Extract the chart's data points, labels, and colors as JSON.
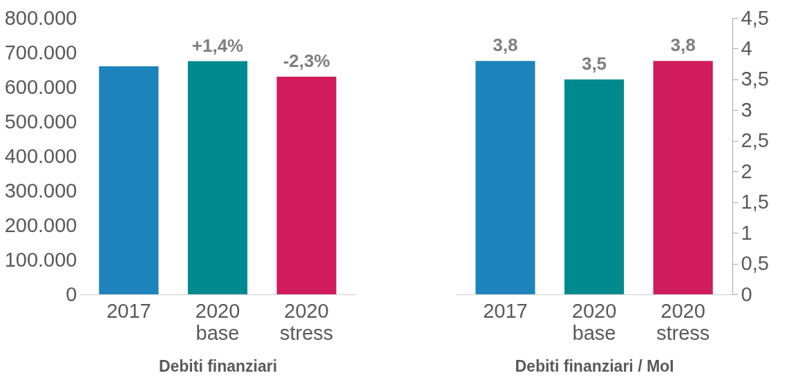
{
  "chart_data": [
    {
      "type": "bar",
      "xlabel": "Debiti finanziari",
      "categories": [
        "2017",
        "2020 base",
        "2020 stress"
      ],
      "values": [
        660000,
        675000,
        630000
      ],
      "colors": [
        "#1f83bb",
        "#008a8f",
        "#d01c5a"
      ],
      "annotations": [
        {
          "text": "+1,4%",
          "x": "2020 base",
          "y": 675000
        },
        {
          "text": "-2,3%",
          "x": "2020 stress",
          "y": 630000
        }
      ],
      "ylim": [
        0,
        800000
      ],
      "yticks": [
        0,
        {
          "value": 100000,
          "label": "100.000"
        },
        {
          "value": 200000,
          "label": "200.000"
        },
        {
          "value": 300000,
          "label": "300.000"
        },
        {
          "value": 400000,
          "label": "400.000"
        },
        {
          "value": 500000,
          "label": "500.000"
        },
        {
          "value": 600000,
          "label": "600.000"
        },
        {
          "value": 700000,
          "label": "700.000"
        },
        {
          "value": 800000,
          "label": "800.000"
        }
      ]
    },
    {
      "type": "bar",
      "xlabel": "Debiti finanziari / MoI",
      "categories": [
        "2017",
        "2020 base",
        "2020 stress"
      ],
      "values": [
        3.8,
        3.5,
        3.8
      ],
      "colors": [
        "#1f83bb",
        "#008a8f",
        "#d01c5a"
      ],
      "value_labels": [
        "3,8",
        "3,5",
        "3,8"
      ],
      "y2lim": [
        0,
        4.5
      ],
      "y2ticks": [
        0,
        {
          "value": 0.5,
          "label": "0,5"
        },
        1,
        {
          "value": 1.5,
          "label": "1,5"
        },
        2,
        {
          "value": 2.5,
          "label": "2,5"
        },
        3,
        {
          "value": 3.5,
          "label": "3,5"
        },
        4,
        {
          "value": 4.5,
          "label": "4,5"
        }
      ]
    }
  ]
}
